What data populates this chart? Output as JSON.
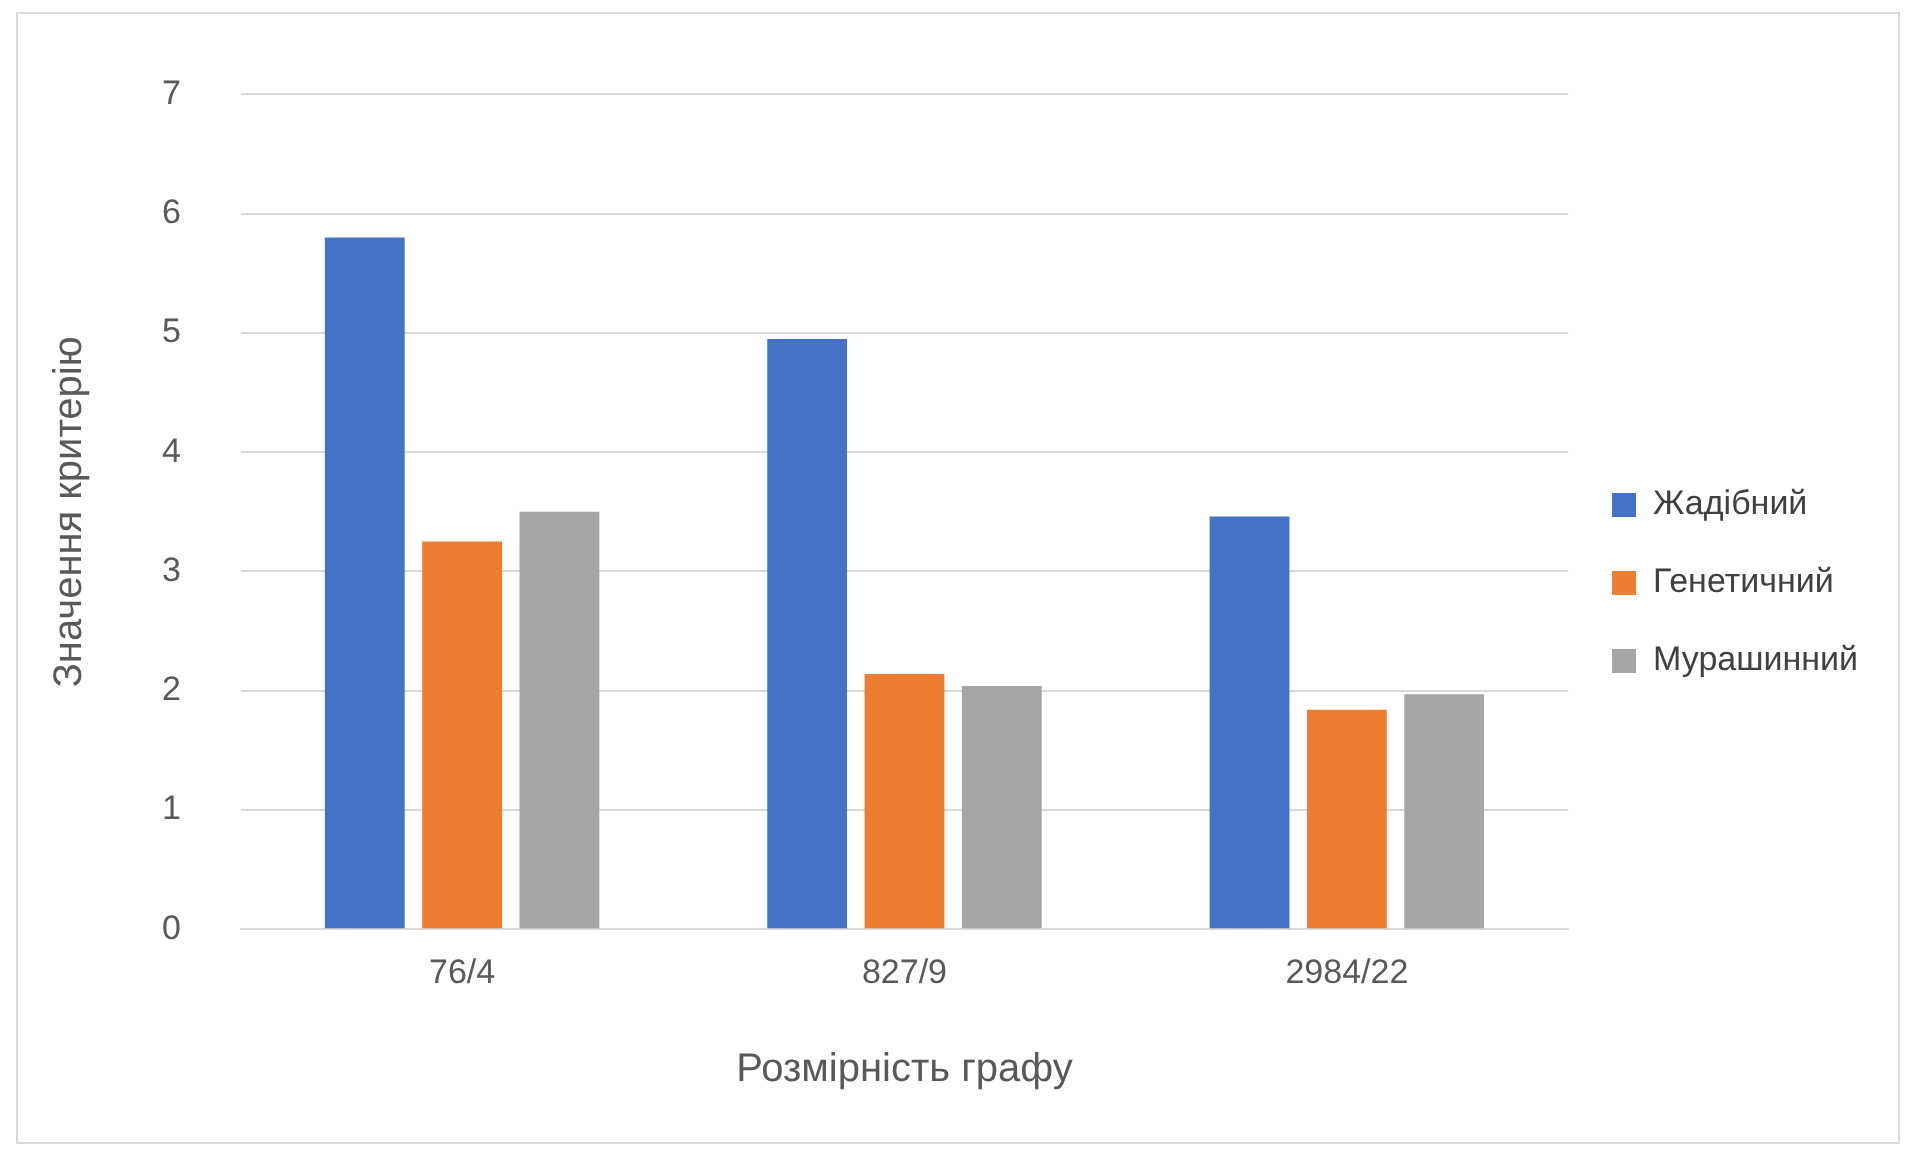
{
  "chart_data": {
    "type": "bar",
    "xlabel": "Розмірність графу",
    "ylabel": "Значення критерію",
    "categories": [
      "76/4",
      "827/9",
      "2984/22"
    ],
    "series": [
      {
        "name": "Жадібний",
        "color": "#4472c4",
        "values": [
          5.8,
          4.95,
          3.46
        ]
      },
      {
        "name": "Генетичний",
        "color": "#ed7d31",
        "values": [
          3.25,
          2.14,
          1.84
        ]
      },
      {
        "name": "Мурашинний",
        "color": "#a5a5a5",
        "values": [
          3.5,
          2.04,
          1.97
        ]
      }
    ],
    "ylim": [
      0,
      7
    ],
    "yticks": [
      0,
      1,
      2,
      3,
      4,
      5,
      6,
      7
    ],
    "grid": "y",
    "legend": "right"
  }
}
